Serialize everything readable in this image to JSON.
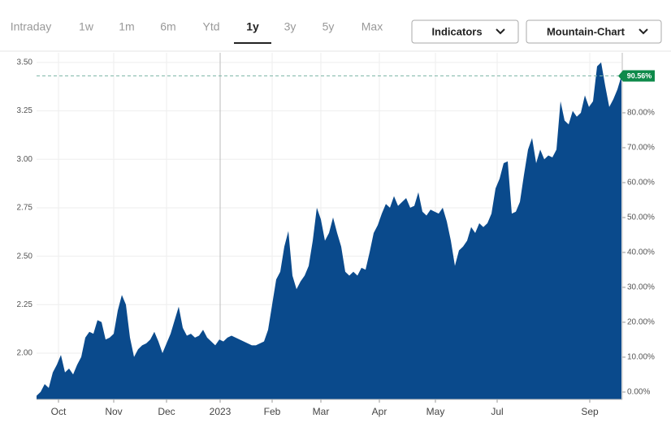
{
  "toolbar": {
    "tabs": [
      "Intraday",
      "1w",
      "1m",
      "6m",
      "Ytd",
      "1y",
      "3y",
      "5y",
      "Max"
    ],
    "selected_index": 5,
    "buttons": [
      "Indicators",
      "Mountain-Chart"
    ]
  },
  "chart_data": {
    "type": "area",
    "series": [
      {
        "color": "#0a4a8c",
        "values": [
          1.78,
          1.8,
          1.84,
          1.82,
          1.9,
          1.94,
          1.99,
          1.9,
          1.92,
          1.89,
          1.94,
          1.98,
          2.08,
          2.11,
          2.1,
          2.17,
          2.16,
          2.07,
          2.08,
          2.1,
          2.22,
          2.3,
          2.25,
          2.08,
          1.98,
          2.02,
          2.04,
          2.05,
          2.07,
          2.11,
          2.06,
          2.0,
          2.05,
          2.1,
          2.17,
          2.24,
          2.13,
          2.09,
          2.1,
          2.08,
          2.09,
          2.12,
          2.08,
          2.06,
          2.04,
          2.07,
          2.06,
          2.08,
          2.09,
          2.08,
          2.07,
          2.06,
          2.05,
          2.04,
          2.04,
          2.05,
          2.06,
          2.12,
          2.25,
          2.38,
          2.42,
          2.55,
          2.63,
          2.4,
          2.33,
          2.37,
          2.4,
          2.45,
          2.58,
          2.75,
          2.69,
          2.58,
          2.62,
          2.7,
          2.62,
          2.55,
          2.42,
          2.4,
          2.42,
          2.4,
          2.44,
          2.43,
          2.52,
          2.62,
          2.66,
          2.72,
          2.77,
          2.75,
          2.81,
          2.76,
          2.78,
          2.8,
          2.75,
          2.76,
          2.83,
          2.73,
          2.71,
          2.74,
          2.73,
          2.72,
          2.75,
          2.68,
          2.58,
          2.45,
          2.53,
          2.55,
          2.58,
          2.65,
          2.62,
          2.67,
          2.65,
          2.67,
          2.72,
          2.85,
          2.9,
          2.98,
          2.99,
          2.72,
          2.73,
          2.78,
          2.92,
          3.05,
          3.11,
          2.98,
          3.05,
          3.0,
          3.02,
          3.01,
          3.05,
          3.3,
          3.2,
          3.18,
          3.25,
          3.22,
          3.24,
          3.33,
          3.27,
          3.3,
          3.48,
          3.5,
          3.38,
          3.27,
          3.31,
          3.36,
          3.43
        ]
      }
    ],
    "xlim": [
      0,
      144
    ],
    "xticks": [
      {
        "value": 5.4,
        "label": "Oct"
      },
      {
        "value": 19,
        "label": "Nov"
      },
      {
        "value": 32,
        "label": "Dec"
      },
      {
        "value": 45.2,
        "label": "2023"
      },
      {
        "value": 58,
        "label": "Feb"
      },
      {
        "value": 70,
        "label": "Mar"
      },
      {
        "value": 84.4,
        "label": "Apr"
      },
      {
        "value": 98.2,
        "label": "May"
      },
      {
        "value": 113.4,
        "label": "Jul"
      },
      {
        "value": 136.2,
        "label": "Sep"
      }
    ],
    "ylim": [
      1.761,
      3.55
    ],
    "yticks": [
      {
        "value": 2,
        "label": "2.00"
      },
      {
        "value": 2.25,
        "label": "2.25"
      },
      {
        "value": 2.5,
        "label": "2.50"
      },
      {
        "value": 2.75,
        "label": "2.75"
      },
      {
        "value": 3,
        "label": "3.00"
      },
      {
        "value": 3.25,
        "label": "3.25"
      },
      {
        "value": 3.5,
        "label": "3.50"
      }
    ],
    "y2lim": [
      -2.1,
      97.2
    ],
    "y2ticks": [
      {
        "value": 0,
        "label": "0.00%"
      },
      {
        "value": 10,
        "label": "10.00%"
      },
      {
        "value": 20,
        "label": "20.00%"
      },
      {
        "value": 30,
        "label": "30.00%"
      },
      {
        "value": 40,
        "label": "40.00%"
      },
      {
        "value": 50,
        "label": "50.00%"
      },
      {
        "value": 60,
        "label": "60.00%"
      },
      {
        "value": 70,
        "label": "70.00%"
      },
      {
        "value": 80,
        "label": "80.00%"
      }
    ],
    "current": {
      "value": 90.56,
      "label": "90.56%"
    },
    "grid": true
  }
}
